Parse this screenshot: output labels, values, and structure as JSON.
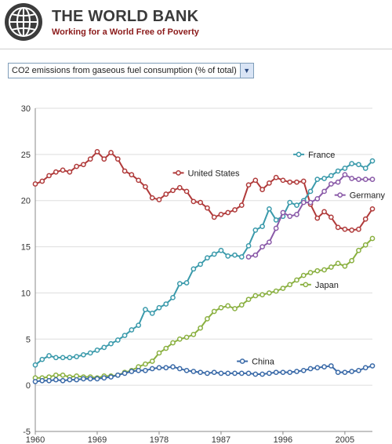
{
  "header": {
    "title": "THE WORLD BANK",
    "tagline": "Working for a World Free of Poverty",
    "logo_icon": "globe-icon"
  },
  "selector": {
    "value": "CO2 emissions from gaseous fuel consumption (% of total)",
    "icon": "chevron-down-icon"
  },
  "chart_data": {
    "type": "line",
    "x": [
      1960,
      1961,
      1962,
      1963,
      1964,
      1965,
      1966,
      1967,
      1968,
      1969,
      1970,
      1971,
      1972,
      1973,
      1974,
      1975,
      1976,
      1977,
      1978,
      1979,
      1980,
      1981,
      1982,
      1983,
      1984,
      1985,
      1986,
      1987,
      1988,
      1989,
      1990,
      1991,
      1992,
      1993,
      1994,
      1995,
      1996,
      1997,
      1998,
      1999,
      2000,
      2001,
      2002,
      2003,
      2004,
      2005,
      2006,
      2007,
      2008,
      2009
    ],
    "xticks": [
      1960,
      1969,
      1978,
      1987,
      1996,
      2005
    ],
    "ylim": [
      -5,
      30
    ],
    "yticks": [
      -5,
      0,
      5,
      10,
      15,
      20,
      25,
      30
    ],
    "series": [
      {
        "name": "United States",
        "color": "#b03a3a",
        "values": [
          21.8,
          22.1,
          22.7,
          23.1,
          23.3,
          23.1,
          23.7,
          23.9,
          24.5,
          25.3,
          24.5,
          25.2,
          24.5,
          23.2,
          22.8,
          22.2,
          21.5,
          20.3,
          20.1,
          20.7,
          21.1,
          21.4,
          21.0,
          19.9,
          19.8,
          19.2,
          18.2,
          18.5,
          18.7,
          19.0,
          19.5,
          21.7,
          22.2,
          21.2,
          21.9,
          22.5,
          22.2,
          22.0,
          22.0,
          22.1,
          19.6,
          18.1,
          18.8,
          18.2,
          17.1,
          16.9,
          16.8,
          16.9,
          18.0,
          19.1
        ]
      },
      {
        "name": "France",
        "color": "#3a9aab",
        "values": [
          2.2,
          2.8,
          3.2,
          3.0,
          3.0,
          3.0,
          3.1,
          3.3,
          3.5,
          3.8,
          4.1,
          4.5,
          4.9,
          5.4,
          6.0,
          6.5,
          8.2,
          7.8,
          8.4,
          8.8,
          9.5,
          11.0,
          11.1,
          12.6,
          13.1,
          13.8,
          14.2,
          14.6,
          14.0,
          14.1,
          13.9,
          15.1,
          16.8,
          17.2,
          19.1,
          17.9,
          18.3,
          19.8,
          19.5,
          20.0,
          21.0,
          22.3,
          22.4,
          22.7,
          23.2,
          23.5,
          24.0,
          23.9,
          23.5,
          24.3
        ]
      },
      {
        "name": "Germany",
        "color": "#8a5aa8",
        "x": [
          1991,
          1992,
          1993,
          1994,
          1995,
          1996,
          1997,
          1998,
          1999,
          2000,
          2001,
          2002,
          2003,
          2004,
          2005,
          2006,
          2007,
          2008,
          2009
        ],
        "values": [
          13.9,
          14.1,
          15.0,
          15.5,
          17.0,
          18.7,
          18.3,
          18.5,
          19.8,
          19.8,
          20.2,
          21.0,
          21.8,
          22.0,
          22.8,
          22.4,
          22.3,
          22.3,
          22.3
        ]
      },
      {
        "name": "Japan",
        "color": "#8ab040",
        "values": [
          0.8,
          0.8,
          0.9,
          1.1,
          1.1,
          0.9,
          1.0,
          0.9,
          0.9,
          0.8,
          1.0,
          1.0,
          1.1,
          1.4,
          1.6,
          2.0,
          2.3,
          2.6,
          3.5,
          4.0,
          4.6,
          5.0,
          5.2,
          5.5,
          6.2,
          7.2,
          8.0,
          8.4,
          8.6,
          8.3,
          8.7,
          9.3,
          9.7,
          9.8,
          10.0,
          10.2,
          10.5,
          10.9,
          11.4,
          11.9,
          12.2,
          12.4,
          12.5,
          12.8,
          13.2,
          12.9,
          13.5,
          14.6,
          15.2,
          15.9
        ]
      },
      {
        "name": "China",
        "color": "#3a6aa8",
        "values": [
          0.4,
          0.5,
          0.5,
          0.6,
          0.5,
          0.6,
          0.6,
          0.7,
          0.7,
          0.7,
          0.8,
          0.9,
          1.1,
          1.3,
          1.5,
          1.6,
          1.6,
          1.8,
          1.9,
          1.9,
          2.0,
          1.8,
          1.6,
          1.5,
          1.4,
          1.3,
          1.4,
          1.3,
          1.3,
          1.3,
          1.3,
          1.3,
          1.2,
          1.2,
          1.3,
          1.4,
          1.4,
          1.4,
          1.5,
          1.6,
          1.8,
          1.9,
          2.0,
          2.1,
          1.4,
          1.4,
          1.5,
          1.6,
          1.9,
          2.1
        ]
      }
    ]
  }
}
